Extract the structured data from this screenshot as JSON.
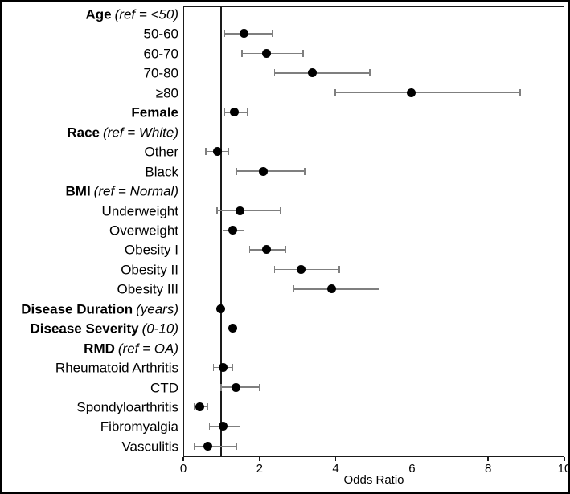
{
  "colors": {
    "background": "#ffffff",
    "frame_border": "#000000",
    "plot_border": "#1a1a1a",
    "text": "#000000",
    "point": "#000000",
    "error_bar": "#7f7f7f",
    "reference_line": "#1a1a1a"
  },
  "chart_data": {
    "type": "forest",
    "title": "",
    "xlabel": "Odds Ratio",
    "ylabel": "",
    "xlim": [
      0,
      10
    ],
    "xticks": [
      0,
      2,
      4,
      6,
      8,
      10
    ],
    "grid": false,
    "legend": false,
    "reference_line_x": 1,
    "rows": [
      {
        "label": "Age",
        "suffix": "(ref = <50)",
        "bold": true
      },
      {
        "label": "50-60",
        "or": 1.6,
        "ci_low": 1.1,
        "ci_high": 2.35
      },
      {
        "label": "60-70",
        "or": 2.2,
        "ci_low": 1.55,
        "ci_high": 3.15
      },
      {
        "label": "70-80",
        "or": 3.4,
        "ci_low": 2.4,
        "ci_high": 4.9
      },
      {
        "label": "≥80",
        "or": 6.0,
        "ci_low": 4.0,
        "ci_high": 8.85
      },
      {
        "label": "Female",
        "bold": true,
        "or": 1.35,
        "ci_low": 1.1,
        "ci_high": 1.7
      },
      {
        "label": "Race",
        "suffix": "(ref = White)",
        "bold": true
      },
      {
        "label": "Other",
        "or": 0.9,
        "ci_low": 0.6,
        "ci_high": 1.2
      },
      {
        "label": "Black",
        "or": 2.1,
        "ci_low": 1.4,
        "ci_high": 3.2
      },
      {
        "label": "BMI",
        "suffix": "(ref = Normal)",
        "bold": true
      },
      {
        "label": "Underweight",
        "or": 1.5,
        "ci_low": 0.9,
        "ci_high": 2.55
      },
      {
        "label": "Overweight",
        "or": 1.3,
        "ci_low": 1.05,
        "ci_high": 1.6
      },
      {
        "label": "Obesity I",
        "or": 2.2,
        "ci_low": 1.75,
        "ci_high": 2.7
      },
      {
        "label": "Obesity II",
        "or": 3.1,
        "ci_low": 2.4,
        "ci_high": 4.1
      },
      {
        "label": "Obesity III",
        "or": 3.9,
        "ci_low": 2.9,
        "ci_high": 5.15
      },
      {
        "label": "Disease Duration",
        "suffix": "(years)",
        "bold": true,
        "or": 1.0,
        "ci_low": 1.0,
        "ci_high": 1.0
      },
      {
        "label": "Disease Severity",
        "suffix": "(0-10)",
        "bold": true,
        "or": 1.3,
        "ci_low": 1.3,
        "ci_high": 1.3
      },
      {
        "label": "RMD",
        "suffix": "(ref = OA)",
        "bold": true
      },
      {
        "label": "Rheumatoid Arthritis",
        "or": 1.05,
        "ci_low": 0.8,
        "ci_high": 1.3
      },
      {
        "label": "CTD",
        "or": 1.4,
        "ci_low": 1.0,
        "ci_high": 2.0
      },
      {
        "label": "Spondyloarthritis",
        "or": 0.45,
        "ci_low": 0.3,
        "ci_high": 0.65
      },
      {
        "label": "Fibromyalgia",
        "or": 1.05,
        "ci_low": 0.7,
        "ci_high": 1.5
      },
      {
        "label": "Vasculitis",
        "or": 0.65,
        "ci_low": 0.3,
        "ci_high": 1.4
      }
    ]
  }
}
